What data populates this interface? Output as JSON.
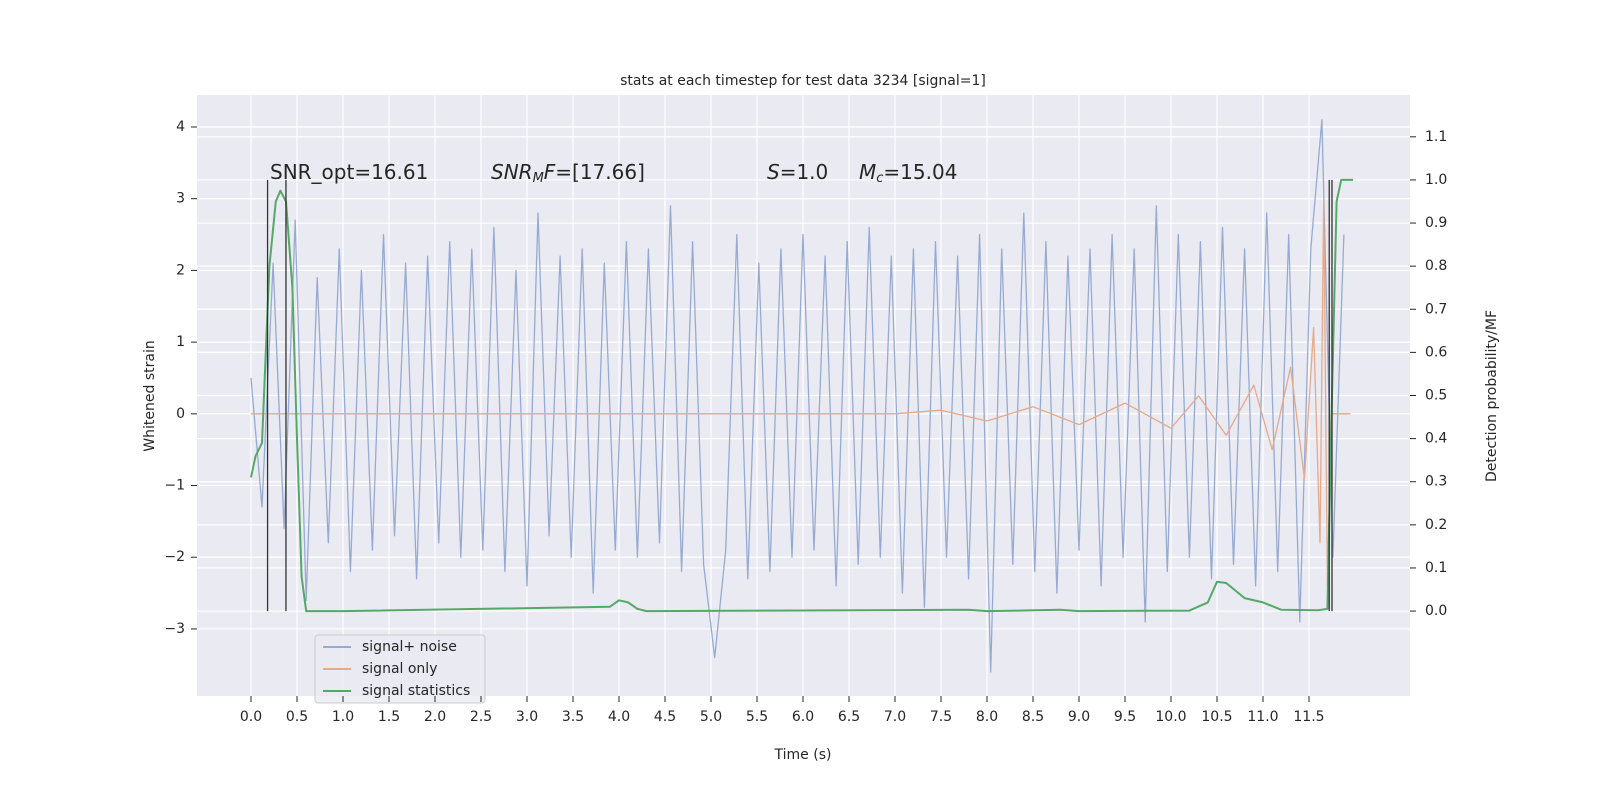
{
  "chart_data": {
    "type": "line",
    "title": "stats at each timestep for test data 3234 [signal=1]",
    "x_label": "Time (s)",
    "y_label": "Whitened strain",
    "y2_label": "Detection probability/MF",
    "annotations": [
      [
        {
          "text": "SNR_opt=16.61"
        }
      ],
      [
        {
          "text": "SNR",
          "italic": true
        },
        {
          "text": "M",
          "italic": true,
          "sub": true
        },
        {
          "text": "F",
          "italic": true
        },
        {
          "text": "=[17.66]"
        }
      ],
      [
        {
          "text": "S",
          "italic": true
        },
        {
          "text": "=1.0"
        }
      ],
      [
        {
          "text": "M",
          "italic": true
        },
        {
          "text": "c",
          "italic": true,
          "sub": true
        },
        {
          "text": "=15.04"
        }
      ]
    ],
    "grid": true,
    "legend": "lower left",
    "xlim": [
      -0.587,
      12.598
    ],
    "ylim": [
      -3.935,
      4.446
    ],
    "y2lim": [
      -0.197,
      1.197
    ],
    "xticks": [
      {
        "value": 0,
        "label": "0.0"
      },
      0.5,
      {
        "value": 1,
        "label": "1.0"
      },
      1.5,
      {
        "value": 2,
        "label": "2.0"
      },
      2.5,
      {
        "value": 3,
        "label": "3.0"
      },
      3.5,
      {
        "value": 4,
        "label": "4.0"
      },
      4.5,
      {
        "value": 5,
        "label": "5.0"
      },
      5.5,
      {
        "value": 6,
        "label": "6.0"
      },
      6.5,
      {
        "value": 7,
        "label": "7.0"
      },
      7.5,
      {
        "value": 8,
        "label": "8.0"
      },
      8.5,
      {
        "value": 9,
        "label": "9.0"
      },
      9.5,
      {
        "value": 10,
        "label": "10.0"
      },
      10.5,
      {
        "value": 11,
        "label": "11.0"
      },
      11.5
    ],
    "yticks": [
      {
        "value": -3,
        "label": "−3"
      },
      {
        "value": -2,
        "label": "−2"
      },
      {
        "value": -1,
        "label": "−1"
      },
      0,
      1,
      2,
      3,
      4
    ],
    "y2ticks": [
      {
        "value": 0,
        "label": "0.0"
      },
      0.1,
      0.2,
      0.3,
      0.4,
      0.5,
      0.6,
      0.7,
      0.8,
      0.9,
      {
        "value": 1,
        "label": "1.0"
      },
      1.1
    ],
    "vlines": {
      "color": "#333333",
      "x": [
        0.18,
        0.38,
        11.72,
        11.75
      ],
      "y2range": [
        0,
        1
      ]
    },
    "series": [
      {
        "name": "signal+ noise",
        "color": "#97abd2",
        "x": [
          0,
          0.12,
          0.24,
          0.36,
          0.48,
          0.6,
          0.72,
          0.84,
          0.96,
          1.08,
          1.2,
          1.32,
          1.44,
          1.56,
          1.68,
          1.8,
          1.92,
          2.04,
          2.16,
          2.28,
          2.4,
          2.52,
          2.64,
          2.76,
          2.88,
          3,
          3.12,
          3.24,
          3.36,
          3.48,
          3.6,
          3.72,
          3.84,
          3.96,
          4.08,
          4.2,
          4.32,
          4.44,
          4.56,
          4.68,
          4.8,
          4.92,
          5.04,
          5.16,
          5.28,
          5.4,
          5.52,
          5.64,
          5.76,
          5.88,
          6,
          6.12,
          6.24,
          6.36,
          6.48,
          6.6,
          6.72,
          6.84,
          6.96,
          7.08,
          7.2,
          7.32,
          7.44,
          7.56,
          7.68,
          7.8,
          7.92,
          8.04,
          8.16,
          8.28,
          8.4,
          8.52,
          8.64,
          8.76,
          8.88,
          9,
          9.12,
          9.24,
          9.36,
          9.48,
          9.6,
          9.72,
          9.84,
          9.96,
          10.08,
          10.2,
          10.32,
          10.44,
          10.56,
          10.68,
          10.8,
          10.92,
          11.04,
          11.16,
          11.28,
          11.4,
          11.52,
          11.64,
          11.76,
          11.88
        ],
        "values": [
          0.5,
          -1.3,
          2.1,
          -1.6,
          2.7,
          -2.6,
          1.9,
          -1.8,
          2.3,
          -2.2,
          2.0,
          -1.9,
          2.5,
          -1.7,
          2.1,
          -2.3,
          2.2,
          -1.8,
          2.4,
          -2.0,
          2.3,
          -1.9,
          2.6,
          -2.2,
          2.0,
          -2.4,
          2.8,
          -1.7,
          2.2,
          -2.0,
          2.3,
          -2.5,
          2.1,
          -1.9,
          2.4,
          -2.0,
          2.3,
          -1.8,
          2.9,
          -2.2,
          2.4,
          -2.1,
          -3.4,
          -1.9,
          2.5,
          -2.3,
          2.1,
          -2.2,
          2.3,
          -2.0,
          2.5,
          -1.9,
          2.2,
          -2.4,
          2.4,
          -2.1,
          2.6,
          -2.0,
          2.2,
          -2.5,
          2.3,
          -2.7,
          2.4,
          -2.0,
          2.2,
          -2.3,
          2.5,
          -3.6,
          2.3,
          -2.1,
          2.8,
          -2.2,
          2.4,
          -2.5,
          2.2,
          -1.9,
          2.3,
          -2.4,
          2.5,
          -2.0,
          2.3,
          -2.9,
          2.9,
          -2.2,
          2.5,
          -2.0,
          2.4,
          -2.3,
          2.6,
          -2.1,
          2.3,
          -2.4,
          2.8,
          -2.2,
          2.5,
          -2.9,
          2.3,
          4.1,
          -2.0,
          2.5
        ]
      },
      {
        "name": "signal only",
        "color": "#e6a98a",
        "x": [
          0,
          7.0,
          7.5,
          8.0,
          8.5,
          9.0,
          9.5,
          10.0,
          10.3,
          10.6,
          10.9,
          11.1,
          11.3,
          11.45,
          11.55,
          11.62,
          11.66,
          11.7,
          11.74,
          11.95
        ],
        "values": [
          0,
          0,
          0.05,
          -0.1,
          0.1,
          -0.15,
          0.15,
          -0.2,
          0.25,
          -0.3,
          0.4,
          -0.5,
          0.65,
          -0.9,
          1.2,
          -1.8,
          3.0,
          -2.4,
          0,
          0
        ]
      },
      {
        "name": "signal statistics",
        "color": "#55a868",
        "axis": "y2",
        "x": [
          0,
          0.05,
          0.12,
          0.2,
          0.27,
          0.32,
          0.38,
          0.45,
          0.5,
          0.55,
          0.6,
          1.0,
          3.9,
          4.0,
          4.1,
          4.2,
          4.3,
          7.8,
          8.0,
          8.8,
          9.0,
          10.2,
          10.4,
          10.5,
          10.6,
          10.8,
          11.0,
          11.2,
          11.6,
          11.7,
          11.75,
          11.8,
          11.85,
          11.98
        ],
        "values": [
          0.31,
          0.36,
          0.39,
          0.8,
          0.95,
          0.975,
          0.95,
          0.75,
          0.4,
          0.08,
          0,
          0,
          0.01,
          0.025,
          0.02,
          0.005,
          0,
          0.003,
          0,
          0.003,
          0,
          0.001,
          0.02,
          0.068,
          0.065,
          0.03,
          0.02,
          0.003,
          0.002,
          0.005,
          0.5,
          0.95,
          1.0,
          1.0
        ]
      }
    ]
  }
}
